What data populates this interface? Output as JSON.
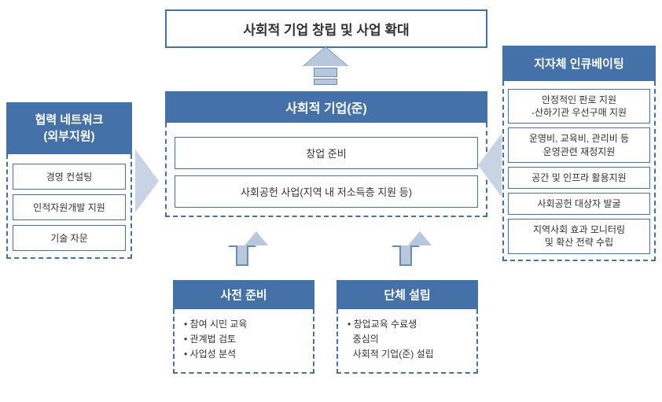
{
  "colors": {
    "primary": "#4472a8",
    "arrowFill": "#b8c8dc",
    "arrowBorder": "#6b8bb0",
    "sideArrowFill": "#c8d4e4",
    "text": "#333333",
    "background": "#ffffff"
  },
  "top": {
    "title": "사회적 기업 창립 및 사업 확대"
  },
  "center": {
    "title": "사회적 기업(준)",
    "items": [
      "창업 준비",
      "사회공헌 사업(지역 내 저소득층 지원 등)"
    ]
  },
  "left": {
    "title_line1": "협력 네트워크",
    "title_line2": "(외부지원)",
    "items": [
      "경영 컨설팅",
      "인적자원개발 지원",
      "기술 자문"
    ]
  },
  "right": {
    "title": "지자체 인큐베이팅",
    "items": [
      "안정적인 판로 지원\n-산하기관 우선구매 지원",
      "운영비, 교육비, 관리비 등\n운영관련 재정지원",
      "공간 및 인프라 활용지원",
      "사회공헌 대상자 발굴",
      "지역사회 효과 모니터링\n및 확산 전략 수립"
    ]
  },
  "bottom": [
    {
      "title": "사전 준비",
      "bullets": [
        "참여 시민 교육",
        "관계법 검토",
        "사업성 분석"
      ]
    },
    {
      "title": "단체 설립",
      "bullets": [
        "창업교육 수료생",
        "중심의",
        "사회적 기업(준) 설립"
      ]
    }
  ]
}
